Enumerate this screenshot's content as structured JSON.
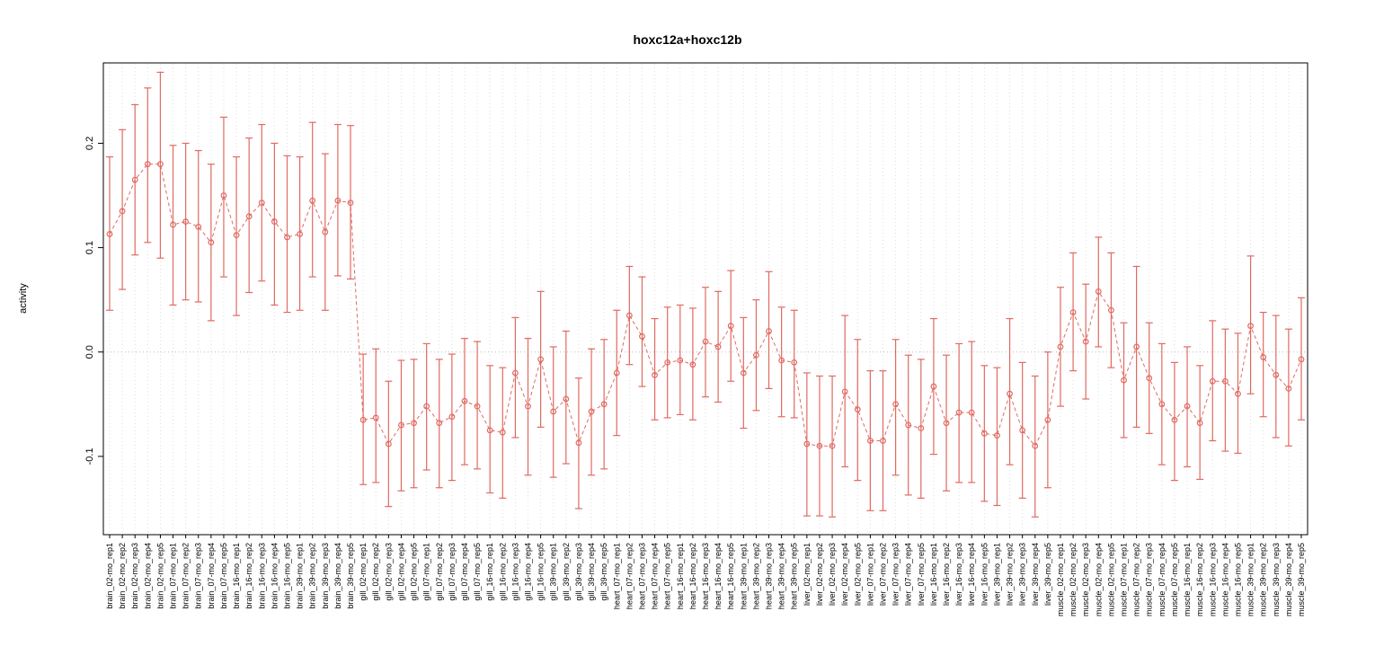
{
  "chart_data": {
    "type": "line",
    "title": "hoxc12a+hoxc12b",
    "xlabel": "",
    "ylabel": "activity",
    "ylim": [
      -0.175,
      0.277
    ],
    "ytick_values": [
      -0.1,
      0.0,
      0.1,
      0.2
    ],
    "ytick_labels": [
      "-0.1",
      "0.0",
      "0.1",
      "0.2"
    ],
    "grid": "vertical-dotted-per-category",
    "zero_line": "dotted",
    "legend": "none",
    "marker": "open-circle",
    "line_style": "dashed",
    "error_bars": true,
    "colors": {
      "series": "#e06a62",
      "grid": "#dedede",
      "zero": "#bbbbbb",
      "axis": "#000000"
    },
    "points": [
      {
        "label": "brain_02-mo_rep1",
        "value": 0.113,
        "lower": 0.04,
        "upper": 0.187
      },
      {
        "label": "brain_02-mo_rep2",
        "value": 0.135,
        "lower": 0.06,
        "upper": 0.213
      },
      {
        "label": "brain_02-mo_rep3",
        "value": 0.165,
        "lower": 0.093,
        "upper": 0.237
      },
      {
        "label": "brain_02-mo_rep4",
        "value": 0.18,
        "lower": 0.105,
        "upper": 0.253
      },
      {
        "label": "brain_02-mo_rep5",
        "value": 0.18,
        "lower": 0.09,
        "upper": 0.268
      },
      {
        "label": "brain_07-mo_rep1",
        "value": 0.122,
        "lower": 0.045,
        "upper": 0.198
      },
      {
        "label": "brain_07-mo_rep2",
        "value": 0.125,
        "lower": 0.05,
        "upper": 0.2
      },
      {
        "label": "brain_07-mo_rep3",
        "value": 0.12,
        "lower": 0.048,
        "upper": 0.193
      },
      {
        "label": "brain_07-mo_rep4",
        "value": 0.105,
        "lower": 0.03,
        "upper": 0.18
      },
      {
        "label": "brain_07-mo_rep5",
        "value": 0.15,
        "lower": 0.072,
        "upper": 0.225
      },
      {
        "label": "brain_16-mo_rep1",
        "value": 0.112,
        "lower": 0.035,
        "upper": 0.187
      },
      {
        "label": "brain_16-mo_rep2",
        "value": 0.13,
        "lower": 0.057,
        "upper": 0.205
      },
      {
        "label": "brain_16-mo_rep3",
        "value": 0.143,
        "lower": 0.068,
        "upper": 0.218
      },
      {
        "label": "brain_16-mo_rep4",
        "value": 0.125,
        "lower": 0.045,
        "upper": 0.2
      },
      {
        "label": "brain_16-mo_rep5",
        "value": 0.11,
        "lower": 0.038,
        "upper": 0.188
      },
      {
        "label": "brain_39-mo_rep1",
        "value": 0.113,
        "lower": 0.04,
        "upper": 0.187
      },
      {
        "label": "brain_39-mo_rep2",
        "value": 0.145,
        "lower": 0.072,
        "upper": 0.22
      },
      {
        "label": "brain_39-mo_rep3",
        "value": 0.115,
        "lower": 0.04,
        "upper": 0.19
      },
      {
        "label": "brain_39-mo_rep4",
        "value": 0.145,
        "lower": 0.073,
        "upper": 0.218
      },
      {
        "label": "brain_39-mo_rep5",
        "value": 0.143,
        "lower": 0.07,
        "upper": 0.217
      },
      {
        "label": "gill_02-mo_rep1",
        "value": -0.065,
        "lower": -0.127,
        "upper": -0.002
      },
      {
        "label": "gill_02-mo_rep2",
        "value": -0.063,
        "lower": -0.125,
        "upper": 0.003
      },
      {
        "label": "gill_02-mo_rep3",
        "value": -0.088,
        "lower": -0.148,
        "upper": -0.028
      },
      {
        "label": "gill_02-mo_rep4",
        "value": -0.07,
        "lower": -0.133,
        "upper": -0.008
      },
      {
        "label": "gill_02-mo_rep5",
        "value": -0.068,
        "lower": -0.13,
        "upper": -0.007
      },
      {
        "label": "gill_07-mo_rep1",
        "value": -0.052,
        "lower": -0.113,
        "upper": 0.008
      },
      {
        "label": "gill_07-mo_rep2",
        "value": -0.068,
        "lower": -0.13,
        "upper": -0.007
      },
      {
        "label": "gill_07-mo_rep3",
        "value": -0.062,
        "lower": -0.123,
        "upper": -0.002
      },
      {
        "label": "gill_07-mo_rep4",
        "value": -0.047,
        "lower": -0.108,
        "upper": 0.013
      },
      {
        "label": "gill_07-mo_rep5",
        "value": -0.052,
        "lower": -0.112,
        "upper": 0.01
      },
      {
        "label": "gill_16-mo_rep1",
        "value": -0.075,
        "lower": -0.135,
        "upper": -0.013
      },
      {
        "label": "gill_16-mo_rep2",
        "value": -0.077,
        "lower": -0.14,
        "upper": -0.015
      },
      {
        "label": "gill_16-mo_rep3",
        "value": -0.02,
        "lower": -0.082,
        "upper": 0.033
      },
      {
        "label": "gill_16-mo_rep4",
        "value": -0.052,
        "lower": -0.118,
        "upper": 0.013
      },
      {
        "label": "gill_16-mo_rep5",
        "value": -0.007,
        "lower": -0.072,
        "upper": 0.058
      },
      {
        "label": "gill_39-mo_rep1",
        "value": -0.057,
        "lower": -0.12,
        "upper": 0.005
      },
      {
        "label": "gill_39-mo_rep2",
        "value": -0.045,
        "lower": -0.107,
        "upper": 0.02
      },
      {
        "label": "gill_39-mo_rep3",
        "value": -0.087,
        "lower": -0.15,
        "upper": -0.025
      },
      {
        "label": "gill_39-mo_rep4",
        "value": -0.057,
        "lower": -0.118,
        "upper": 0.003
      },
      {
        "label": "gill_39-mo_rep5",
        "value": -0.05,
        "lower": -0.112,
        "upper": 0.012
      },
      {
        "label": "heart_07-mo_rep1",
        "value": -0.02,
        "lower": -0.08,
        "upper": 0.04
      },
      {
        "label": "heart_07-mo_rep2",
        "value": 0.035,
        "lower": -0.012,
        "upper": 0.082
      },
      {
        "label": "heart_07-mo_rep3",
        "value": 0.015,
        "lower": -0.033,
        "upper": 0.072
      },
      {
        "label": "heart_07-mo_rep4",
        "value": -0.022,
        "lower": -0.065,
        "upper": 0.032
      },
      {
        "label": "heart_07-mo_rep5",
        "value": -0.01,
        "lower": -0.063,
        "upper": 0.043
      },
      {
        "label": "heart_16-mo_rep1",
        "value": -0.008,
        "lower": -0.06,
        "upper": 0.045
      },
      {
        "label": "heart_16-mo_rep2",
        "value": -0.012,
        "lower": -0.065,
        "upper": 0.042
      },
      {
        "label": "heart_16-mo_rep3",
        "value": 0.01,
        "lower": -0.043,
        "upper": 0.062
      },
      {
        "label": "heart_16-mo_rep4",
        "value": 0.005,
        "lower": -0.048,
        "upper": 0.058
      },
      {
        "label": "heart_16-mo_rep5",
        "value": 0.025,
        "lower": -0.028,
        "upper": 0.078
      },
      {
        "label": "heart_39-mo_rep1",
        "value": -0.02,
        "lower": -0.073,
        "upper": 0.033
      },
      {
        "label": "heart_39-mo_rep2",
        "value": -0.003,
        "lower": -0.056,
        "upper": 0.05
      },
      {
        "label": "heart_39-mo_rep3",
        "value": 0.02,
        "lower": -0.035,
        "upper": 0.077
      },
      {
        "label": "heart_39-mo_rep4",
        "value": -0.008,
        "lower": -0.062,
        "upper": 0.043
      },
      {
        "label": "heart_39-mo_rep5",
        "value": -0.01,
        "lower": -0.063,
        "upper": 0.04
      },
      {
        "label": "liver_02-mo_rep1",
        "value": -0.088,
        "lower": -0.157,
        "upper": -0.02
      },
      {
        "label": "liver_02-mo_rep2",
        "value": -0.09,
        "lower": -0.157,
        "upper": -0.023
      },
      {
        "label": "liver_02-mo_rep3",
        "value": -0.09,
        "lower": -0.158,
        "upper": -0.023
      },
      {
        "label": "liver_02-mo_rep4",
        "value": -0.038,
        "lower": -0.11,
        "upper": 0.035
      },
      {
        "label": "liver_02-mo_rep5",
        "value": -0.055,
        "lower": -0.123,
        "upper": 0.012
      },
      {
        "label": "liver_07-mo_rep1",
        "value": -0.085,
        "lower": -0.152,
        "upper": -0.018
      },
      {
        "label": "liver_07-mo_rep2",
        "value": -0.085,
        "lower": -0.152,
        "upper": -0.018
      },
      {
        "label": "liver_07-mo_rep3",
        "value": -0.05,
        "lower": -0.118,
        "upper": 0.012
      },
      {
        "label": "liver_07-mo_rep4",
        "value": -0.07,
        "lower": -0.137,
        "upper": -0.003
      },
      {
        "label": "liver_07-mo_rep5",
        "value": -0.073,
        "lower": -0.14,
        "upper": -0.007
      },
      {
        "label": "liver_16-mo_rep1",
        "value": -0.033,
        "lower": -0.098,
        "upper": 0.032
      },
      {
        "label": "liver_16-mo_rep2",
        "value": -0.068,
        "lower": -0.133,
        "upper": -0.003
      },
      {
        "label": "liver_16-mo_rep3",
        "value": -0.058,
        "lower": -0.125,
        "upper": 0.008
      },
      {
        "label": "liver_16-mo_rep4",
        "value": -0.058,
        "lower": -0.125,
        "upper": 0.01
      },
      {
        "label": "liver_16-mo_rep5",
        "value": -0.078,
        "lower": -0.143,
        "upper": -0.013
      },
      {
        "label": "liver_39-mo_rep1",
        "value": -0.08,
        "lower": -0.147,
        "upper": -0.015
      },
      {
        "label": "liver_39-mo_rep2",
        "value": -0.04,
        "lower": -0.108,
        "upper": 0.032
      },
      {
        "label": "liver_39-mo_rep3",
        "value": -0.075,
        "lower": -0.14,
        "upper": -0.01
      },
      {
        "label": "liver_39-mo_rep4",
        "value": -0.09,
        "lower": -0.158,
        "upper": -0.023
      },
      {
        "label": "liver_39-mo_rep5",
        "value": -0.065,
        "lower": -0.13,
        "upper": 0.0
      },
      {
        "label": "muscle_02-mo_rep1",
        "value": 0.005,
        "lower": -0.052,
        "upper": 0.062
      },
      {
        "label": "muscle_02-mo_rep2",
        "value": 0.038,
        "lower": -0.018,
        "upper": 0.095
      },
      {
        "label": "muscle_02-mo_rep3",
        "value": 0.01,
        "lower": -0.045,
        "upper": 0.065
      },
      {
        "label": "muscle_02-mo_rep4",
        "value": 0.058,
        "lower": 0.005,
        "upper": 0.11
      },
      {
        "label": "muscle_02-mo_rep5",
        "value": 0.04,
        "lower": -0.015,
        "upper": 0.095
      },
      {
        "label": "muscle_07-mo_rep1",
        "value": -0.027,
        "lower": -0.082,
        "upper": 0.028
      },
      {
        "label": "muscle_07-mo_rep2",
        "value": 0.005,
        "lower": -0.072,
        "upper": 0.082
      },
      {
        "label": "muscle_07-mo_rep3",
        "value": -0.025,
        "lower": -0.078,
        "upper": 0.028
      },
      {
        "label": "muscle_07-mo_rep4",
        "value": -0.05,
        "lower": -0.108,
        "upper": 0.008
      },
      {
        "label": "muscle_07-mo_rep5",
        "value": -0.065,
        "lower": -0.123,
        "upper": -0.01
      },
      {
        "label": "muscle_16-mo_rep1",
        "value": -0.052,
        "lower": -0.11,
        "upper": 0.005
      },
      {
        "label": "muscle_16-mo_rep2",
        "value": -0.068,
        "lower": -0.122,
        "upper": -0.013
      },
      {
        "label": "muscle_16-mo_rep3",
        "value": -0.028,
        "lower": -0.085,
        "upper": 0.03
      },
      {
        "label": "muscle_16-mo_rep4",
        "value": -0.028,
        "lower": -0.095,
        "upper": 0.022
      },
      {
        "label": "muscle_16-mo_rep5",
        "value": -0.04,
        "lower": -0.097,
        "upper": 0.018
      },
      {
        "label": "muscle_39-mo_rep1",
        "value": 0.025,
        "lower": -0.04,
        "upper": 0.092
      },
      {
        "label": "muscle_39-mo_rep2",
        "value": -0.005,
        "lower": -0.062,
        "upper": 0.038
      },
      {
        "label": "muscle_39-mo_rep3",
        "value": -0.022,
        "lower": -0.082,
        "upper": 0.035
      },
      {
        "label": "muscle_39-mo_rep4",
        "value": -0.035,
        "lower": -0.09,
        "upper": 0.022
      },
      {
        "label": "muscle_39-mo_rep5",
        "value": -0.007,
        "lower": -0.065,
        "upper": 0.052
      }
    ]
  }
}
